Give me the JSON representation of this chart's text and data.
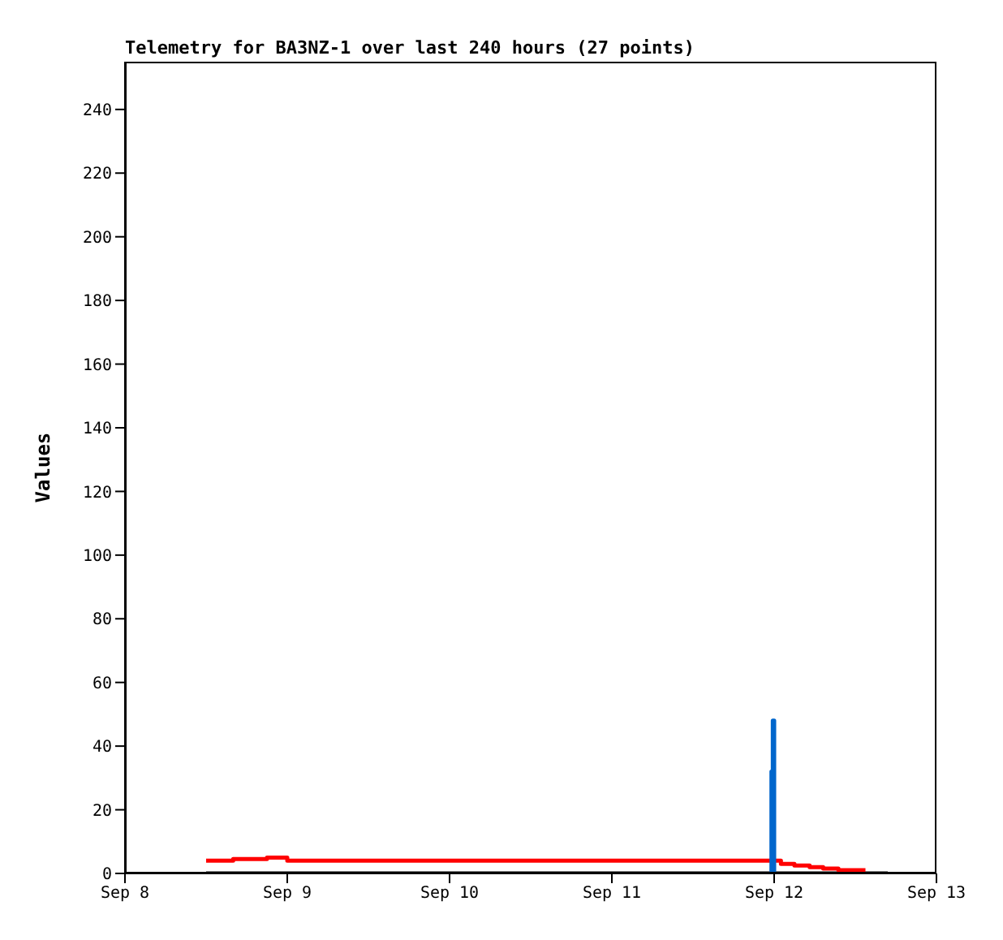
{
  "chart_data": {
    "type": "step",
    "title": "Telemetry for BA3NZ-1 over last 240 hours (27 points)",
    "ylabel": "Values",
    "xlim": [
      "--09-08T00:00",
      "--09-13T00:00"
    ],
    "xticks": [
      {
        "value": "--09-08T00:00",
        "label": "Sep 8"
      },
      {
        "value": "--09-09T00:00",
        "label": "Sep 9"
      },
      {
        "value": "--09-10T00:00",
        "label": "Sep 10"
      },
      {
        "value": "--09-11T00:00",
        "label": "Sep 11"
      },
      {
        "value": "--09-12T00:00",
        "label": "Sep 12"
      },
      {
        "value": "--09-13T00:00",
        "label": "Sep 13"
      }
    ],
    "ylim": [
      0,
      255
    ],
    "yticks": [
      0,
      20,
      40,
      60,
      80,
      100,
      120,
      140,
      160,
      180,
      200,
      220,
      240
    ],
    "marker": "none",
    "line_style": "solid",
    "series": [
      {
        "color": "#000000",
        "x": [
          "--09-08T12:00",
          "--09-12T16:48"
        ],
        "values": [
          0,
          0
        ]
      },
      {
        "color": "#ff0000",
        "x": [
          "--09-08T12:00",
          "--09-08T16:00",
          "--09-08T21:00",
          "--09-09T00:00",
          "--09-12T01:00",
          "--09-12T03:00",
          "--09-12T05:15",
          "--09-12T07:15",
          "--09-12T09:30",
          "--09-12T13:30"
        ],
        "values": [
          4,
          4.5,
          5,
          4,
          3,
          2.5,
          2,
          1.5,
          1,
          1
        ]
      },
      {
        "color": "#0066cc",
        "x": [
          "--09-11T23:24",
          "--09-11T23:36",
          "--09-11T23:48",
          "--09-12T00:00"
        ],
        "values": [
          0,
          32,
          48,
          0
        ]
      }
    ]
  }
}
